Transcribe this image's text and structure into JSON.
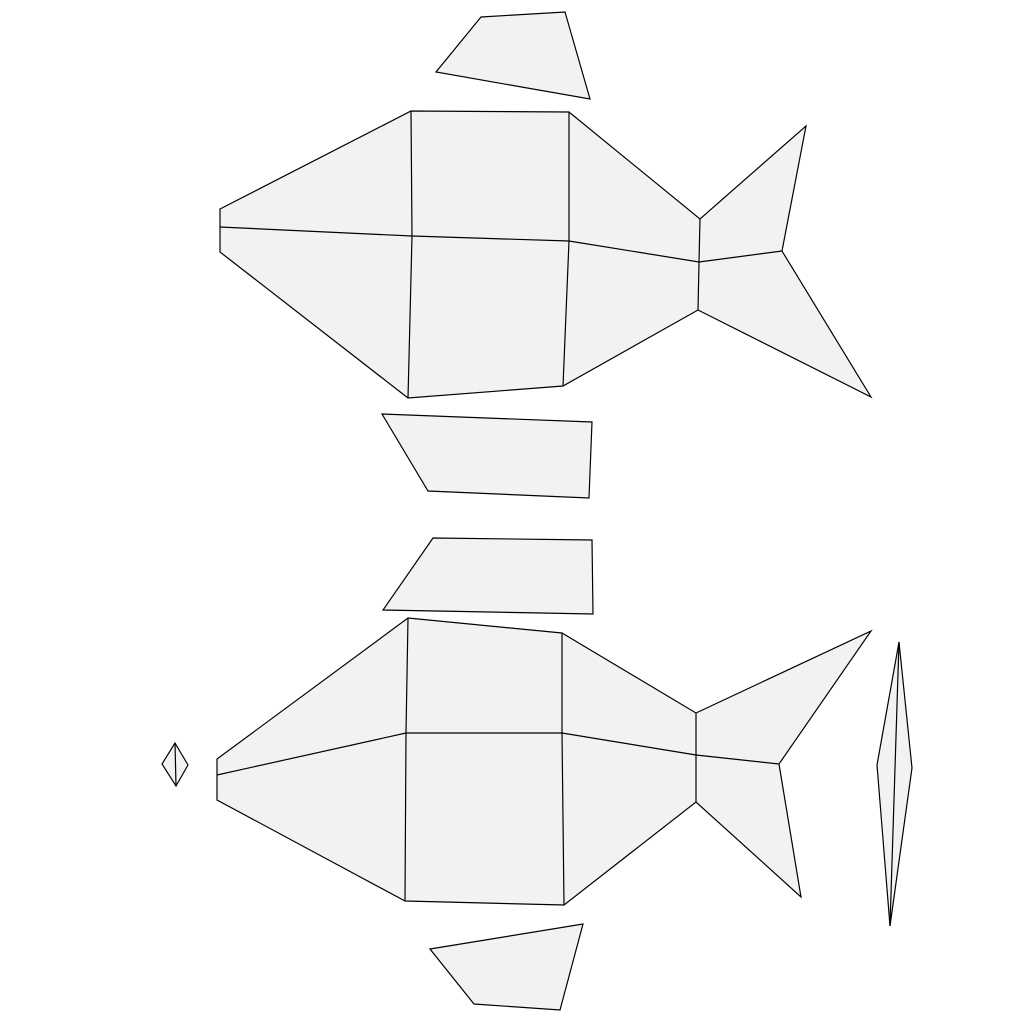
{
  "diagram": {
    "type": "papercraft-fish-net",
    "face_color": "#f2f2f2",
    "line_color": "#000000",
    "background": "#ffffff",
    "pieces": [
      "top-dorsal-fin",
      "top-fish-body",
      "top-ventral-fin",
      "bottom-dorsal-fin",
      "bottom-fish-body",
      "bottom-ventral-fin",
      "eye-piece",
      "side-spine-strip"
    ]
  }
}
